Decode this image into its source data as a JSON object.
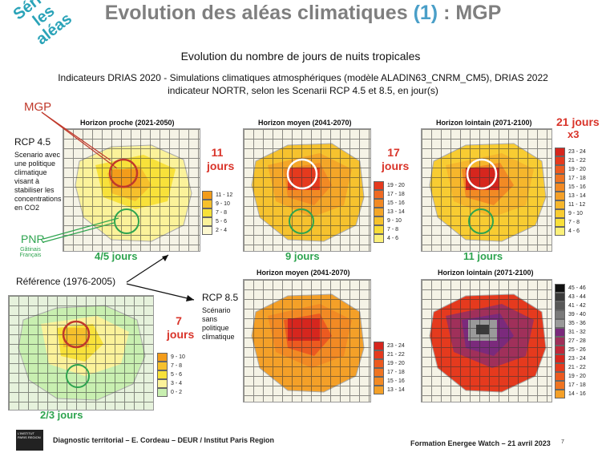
{
  "title": {
    "main": "Evolution des aléas climatiques ",
    "num": "(1)",
    "rest": " : MGP"
  },
  "diag_label": "Sérier les aléas",
  "subtitle": "Evolution du nombre de jours de nuits tropicales",
  "indicators_line1": "Indicateurs DRIAS 2020 - Simulations climatiques atmosphériques (modèle ALADIN63_CNRM_CM5), DRIAS 2022",
  "indicators_line2": "indicateur NORTR, selon les Scenarii RCP 4.5 et 8.5, en jour(s)",
  "labels": {
    "mgp": "MGP",
    "rcp45": "RCP 4.5",
    "rcp45_desc": "Scenario avec une politique climatique visant à stabiliser les concentrations en CO2",
    "pnr": "PNR",
    "pnr_sub": "Gâtinais Français",
    "reference": "Référence (1976-2005)",
    "rcp85": "RCP 8.5",
    "rcp85_desc": "Scénario sans politique climatique"
  },
  "maps": {
    "m1": {
      "caption": "Horizon proche (2021-2050)",
      "days": "11 jours",
      "pnr_days": "4/5 jours",
      "legend": [
        "11 - 12",
        "9 - 10",
        "7 - 8",
        "5 - 6",
        "2 - 4"
      ],
      "colors": [
        "#f39c1a",
        "#f6c02c",
        "#f8e13a",
        "#fbf29a",
        "#fdf8d0"
      ]
    },
    "m2": {
      "caption": "Horizon moyen (2041-2070)",
      "days": "17 jours",
      "pnr_days": "9 jours",
      "legend": [
        "19 - 20",
        "17 - 18",
        "15 - 16",
        "13 - 14",
        "9 - 10",
        "7 - 8",
        "4 - 6"
      ],
      "colors": [
        "#e53a1e",
        "#ef6a22",
        "#f28a24",
        "#f4a628",
        "#f6c22e",
        "#f8dd38",
        "#fbf07a"
      ]
    },
    "m3": {
      "caption": "Horizon lointain (2071-2100)",
      "days": "21 jours",
      "extra": "x3",
      "pnr_days": "11 jours",
      "legend": [
        "23 - 24",
        "21 - 22",
        "19 - 20",
        "17 - 18",
        "15 - 16",
        "13 - 14",
        "11 - 12",
        "9 - 10",
        "7 - 8",
        "4 - 6"
      ],
      "colors": [
        "#d6261e",
        "#e53a1e",
        "#ec5a20",
        "#ef7422",
        "#f28a24",
        "#f4a028",
        "#f6b62c",
        "#f8cc32",
        "#f9e03a",
        "#fbf07a"
      ]
    },
    "ref": {
      "days": "7 jours",
      "pnr_days": "2/3 jours",
      "legend": [
        "9 - 10",
        "7 - 8",
        "5 - 6",
        "3 - 4",
        "0 - 2"
      ],
      "colors": [
        "#f39c1a",
        "#f6c02c",
        "#f8e13a",
        "#fbf29a",
        "#c8efb0"
      ]
    },
    "m4": {
      "caption": "Horizon moyen (2041-2070)",
      "legend": [
        "23 - 24",
        "21 - 22",
        "19 - 20",
        "17 - 18",
        "15 - 16",
        "13 - 14"
      ],
      "colors": [
        "#d6261e",
        "#e53a1e",
        "#ec5a20",
        "#ef7422",
        "#f28a24",
        "#f4a028"
      ]
    },
    "m5": {
      "caption": "Horizon lointain (2071-2100)",
      "legend": [
        "45 - 46",
        "43 - 44",
        "41 - 42",
        "39 - 40",
        "35 - 36",
        "31 - 32",
        "27 - 28",
        "25 - 26",
        "23 - 24",
        "21 - 22",
        "19 - 20",
        "17 - 18",
        "14 - 16"
      ],
      "colors": [
        "#111111",
        "#3a3a3a",
        "#585858",
        "#7a7a7a",
        "#9a9a9a",
        "#7b2a7c",
        "#a0305a",
        "#c0283a",
        "#d6261e",
        "#e53a1e",
        "#ec5a20",
        "#ef7422",
        "#f4a028"
      ]
    }
  },
  "footer": {
    "logo": "L'INSTITUT PARIS REGION",
    "left": "Diagnostic territorial – E. Cordeau – DEUR / Institut Paris Region",
    "right": "Formation Energee Watch – 21 avril 2023",
    "page": "7"
  }
}
